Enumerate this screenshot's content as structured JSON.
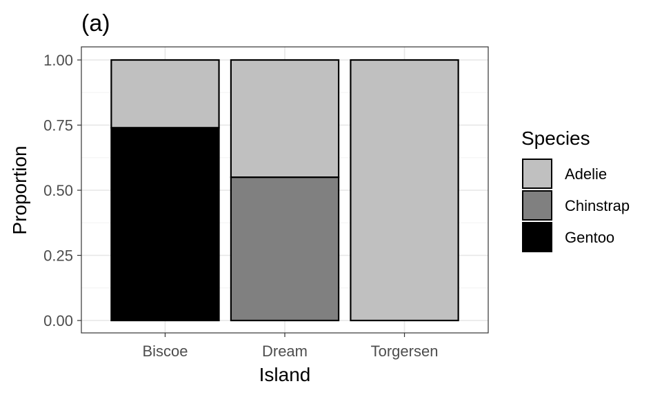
{
  "chart_data": {
    "type": "bar",
    "stacked": true,
    "title": "(a)",
    "xlabel": "Island",
    "ylabel": "Proportion",
    "categories": [
      "Biscoe",
      "Dream",
      "Torgersen"
    ],
    "series": [
      {
        "name": "Gentoo",
        "values": [
          0.74,
          0.0,
          0.0
        ],
        "color": "#000000"
      },
      {
        "name": "Chinstrap",
        "values": [
          0.0,
          0.55,
          0.0
        ],
        "color": "#808080"
      },
      {
        "name": "Adelie",
        "values": [
          0.26,
          0.45,
          1.0
        ],
        "color": "#c0c0c0"
      }
    ],
    "ylim": [
      0,
      1
    ],
    "yticks": [
      "0.00",
      "0.25",
      "0.50",
      "0.75",
      "1.00"
    ],
    "grid": true,
    "legend": {
      "title": "Species",
      "position": "right",
      "entries": [
        {
          "name": "Adelie",
          "color": "#c0c0c0"
        },
        {
          "name": "Chinstrap",
          "color": "#808080"
        },
        {
          "name": "Gentoo",
          "color": "#000000"
        }
      ]
    }
  }
}
